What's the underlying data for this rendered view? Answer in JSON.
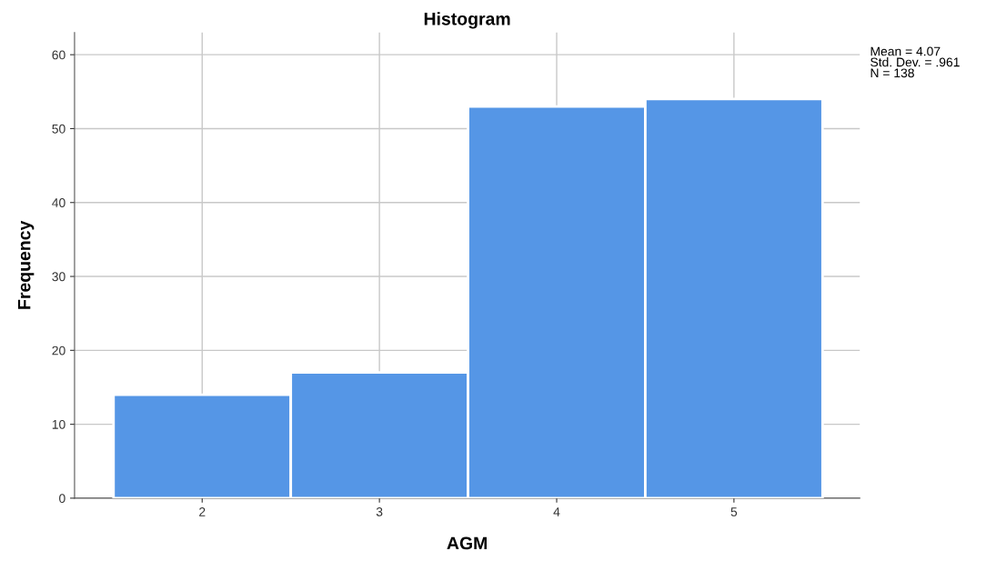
{
  "chart_data": {
    "type": "histogram",
    "title": "Histogram",
    "xlabel": "AGM",
    "ylabel": "Frequency",
    "bins": [
      1.5,
      2.5,
      3.5,
      4.5,
      5.5
    ],
    "values": [
      14,
      17,
      53,
      54
    ],
    "color": "#5596e6",
    "xlim": [
      1.28,
      5.71
    ],
    "xticks": [
      2,
      3,
      4,
      5
    ],
    "ylim": [
      0,
      63
    ],
    "yticks": [
      0,
      10,
      20,
      30,
      40,
      50,
      60
    ],
    "grid": true,
    "annotations": [
      "Mean = 4.07\nStd. Dev. = .961\nN = 138"
    ]
  }
}
